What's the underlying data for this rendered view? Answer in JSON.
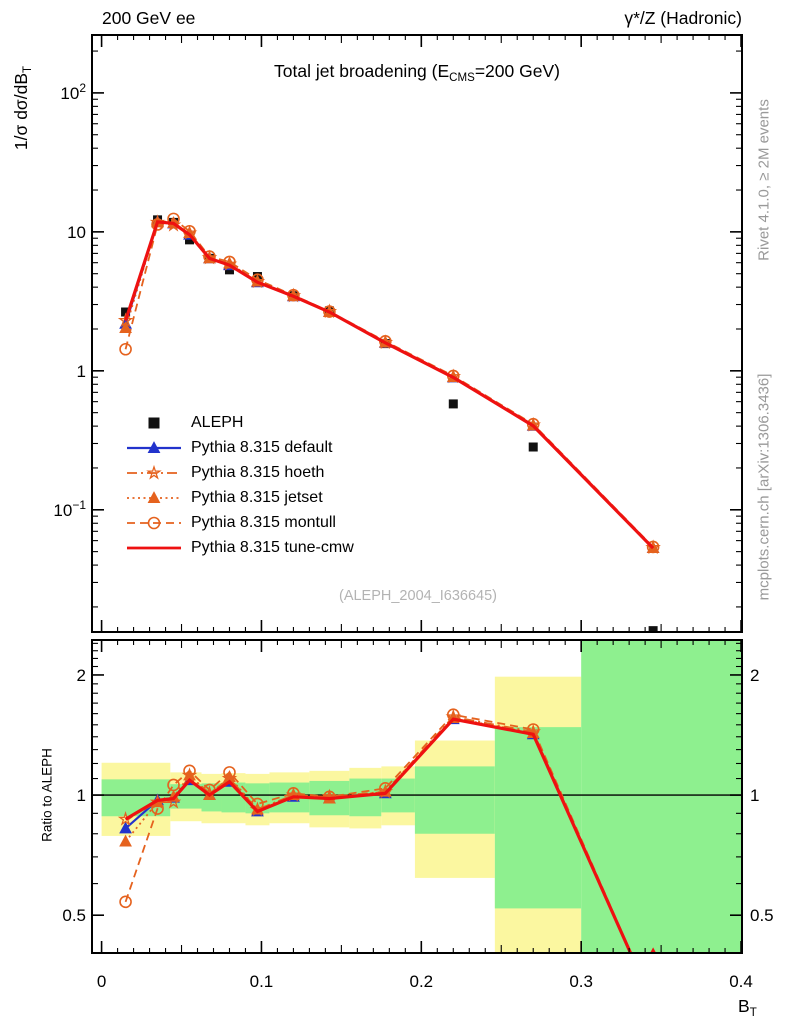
{
  "header": {
    "left": "200 GeV ee",
    "right": "γ*/Z (Hadronic)"
  },
  "main_panel": {
    "title": {
      "pre": "Total jet broadening (E",
      "sub": "CMS",
      "post": "=200 GeV)"
    },
    "ylabel": {
      "pre": "1/σ  dσ/dB",
      "sub": "T"
    },
    "watermark": "(ALEPH_2004_I636645)",
    "yticks": [
      {
        "base": "10",
        "exp": "2",
        "value": 100
      },
      {
        "base": "10",
        "exp": "",
        "value": 10
      },
      {
        "base": "1",
        "exp": "",
        "value": 1
      },
      {
        "base": "10",
        "exp": "−1",
        "value": 0.1
      }
    ]
  },
  "ratio_panel": {
    "ylabel": "Ratio to ALEPH",
    "yticks": [
      {
        "label": "2",
        "value": 2
      },
      {
        "label": "1",
        "value": 1
      },
      {
        "label": "0.5",
        "value": 0.5
      }
    ]
  },
  "xaxis": {
    "label": {
      "base": "B",
      "sub": "T"
    },
    "ticks": [
      {
        "label": "0",
        "value": 0.0
      },
      {
        "label": "0.1",
        "value": 0.1
      },
      {
        "label": "0.2",
        "value": 0.2
      },
      {
        "label": "0.3",
        "value": 0.3
      },
      {
        "label": "0.4",
        "value": 0.4
      }
    ]
  },
  "side_notes": {
    "top": "Rivet 4.1.0, ≥ 2M events",
    "bottom": "mcplots.cern.ch [arXiv:1306.3436]"
  },
  "colors": {
    "red": "#ee1111",
    "orange": "#e5621e",
    "blue": "#2233cc",
    "black": "#111111",
    "band_yellow": "#fbf7a0",
    "band_green": "#8ef08f",
    "gray_text": "#999999",
    "watermark": "#b3b3b3"
  },
  "chart_data": {
    "type": "line",
    "x_scale": "linear",
    "y_scale": "log",
    "xlim": [
      -0.006,
      0.4006
    ],
    "main_ylim": [
      0.0132,
      261
    ],
    "ratio_ylim": [
      0.402,
      2.447
    ],
    "ratio_reference": 1,
    "x": [
      0.015,
      0.035,
      0.045,
      0.055,
      0.0675,
      0.08,
      0.0975,
      0.12,
      0.1425,
      0.1775,
      0.22,
      0.27,
      0.345
    ],
    "data_series": {
      "name": "ALEPH",
      "color": "#111111",
      "marker": "square-filled",
      "values": [
        2.65,
        12.2,
        11.7,
        8.76,
        6.45,
        5.33,
        4.77,
        3.47,
        2.7,
        1.57,
        0.578,
        0.283,
        0.0135
      ]
    },
    "mc_series": [
      {
        "name": "Pythia 8.315 default",
        "color": "#2233cc",
        "line": "solid",
        "marker": "triangle-filled",
        "width": 2.2,
        "main_values": [
          2.18,
          11.8,
          11.5,
          9.55,
          6.45,
          5.76,
          4.34,
          3.44,
          2.65,
          1.59,
          0.897,
          0.402,
          0.053
        ],
        "ratio_values": [
          0.825,
          0.97,
          0.985,
          1.09,
          1.0,
          1.08,
          0.91,
          0.99,
          0.98,
          1.01,
          1.55,
          1.42,
          0.3
        ]
      },
      {
        "name": "Pythia 8.315 hoeth",
        "color": "#e5621e",
        "line": "dashdot",
        "marker": "star-open",
        "width": 1.8,
        "main_values": [
          2.3,
          11.7,
          11.2,
          9.81,
          6.51,
          5.86,
          4.39,
          3.47,
          2.67,
          1.6,
          0.908,
          0.407,
          0.0535
        ],
        "ratio_values": [
          0.87,
          0.96,
          0.96,
          1.12,
          1.01,
          1.1,
          0.92,
          1.0,
          0.99,
          1.02,
          1.57,
          1.44,
          0.3
        ]
      },
      {
        "name": "Pythia 8.315 jetset",
        "color": "#e5621e",
        "line": "dotted",
        "marker": "triangle-filled",
        "width": 1.8,
        "main_values": [
          2.03,
          11.7,
          11.6,
          9.81,
          6.45,
          5.92,
          4.39,
          3.47,
          2.65,
          1.6,
          0.902,
          0.405,
          0.053
        ],
        "ratio_values": [
          0.765,
          0.96,
          0.99,
          1.12,
          1.0,
          1.11,
          0.92,
          1.0,
          0.98,
          1.02,
          1.56,
          1.43,
          0.3
        ]
      },
      {
        "name": "Pythia 8.315 montull",
        "color": "#e5621e",
        "line": "dashed",
        "marker": "circle-open",
        "width": 1.8,
        "main_values": [
          1.43,
          11.3,
          12.4,
          10.1,
          6.64,
          6.08,
          4.53,
          3.5,
          2.67,
          1.63,
          0.919,
          0.413,
          0.054
        ],
        "ratio_values": [
          0.54,
          0.925,
          1.06,
          1.15,
          1.03,
          1.14,
          0.95,
          1.01,
          0.99,
          1.04,
          1.59,
          1.46,
          0.3
        ]
      },
      {
        "name": "Pythia 8.315 tune-cmw",
        "color": "#ee1111",
        "line": "solid",
        "marker": "none",
        "width": 3.2,
        "main_values": [
          2.3,
          11.8,
          11.5,
          9.55,
          6.45,
          5.76,
          4.34,
          3.44,
          2.65,
          1.59,
          0.897,
          0.402,
          0.053
        ],
        "ratio_values": [
          0.87,
          0.97,
          0.98,
          1.09,
          1.0,
          1.08,
          0.91,
          0.99,
          0.98,
          1.01,
          1.55,
          1.42,
          0.3
        ]
      }
    ],
    "ratio_bands": [
      {
        "x": [
          0.0,
          0.043
        ],
        "yellow": [
          0.79,
          1.205
        ],
        "green": [
          0.885,
          1.095
        ]
      },
      {
        "x": [
          0.043,
          0.0625
        ],
        "yellow": [
          0.86,
          1.14
        ],
        "green": [
          0.925,
          1.065
        ]
      },
      {
        "x": [
          0.0625,
          0.075
        ],
        "yellow": [
          0.85,
          1.13
        ],
        "green": [
          0.91,
          1.07
        ]
      },
      {
        "x": [
          0.075,
          0.09
        ],
        "yellow": [
          0.85,
          1.135
        ],
        "green": [
          0.905,
          1.075
        ]
      },
      {
        "x": [
          0.09,
          0.105
        ],
        "yellow": [
          0.84,
          1.13
        ],
        "green": [
          0.9,
          1.07
        ]
      },
      {
        "x": [
          0.105,
          0.13
        ],
        "yellow": [
          0.85,
          1.14
        ],
        "green": [
          0.905,
          1.075
        ]
      },
      {
        "x": [
          0.13,
          0.155
        ],
        "yellow": [
          0.83,
          1.15
        ],
        "green": [
          0.89,
          1.085
        ]
      },
      {
        "x": [
          0.155,
          0.175
        ],
        "yellow": [
          0.825,
          1.17
        ],
        "green": [
          0.885,
          1.1
        ]
      },
      {
        "x": [
          0.175,
          0.196
        ],
        "yellow": [
          0.84,
          1.18
        ],
        "green": [
          0.905,
          1.1
        ]
      },
      {
        "x": [
          0.196,
          0.246
        ],
        "yellow": [
          0.62,
          1.37
        ],
        "green": [
          0.8,
          1.18
        ]
      },
      {
        "x": [
          0.246,
          0.3
        ],
        "yellow": [
          0.4,
          1.98
        ],
        "green": [
          0.52,
          1.48
        ]
      },
      {
        "x": [
          0.3,
          0.4
        ],
        "yellow": null,
        "green": [
          0.402,
          2.447
        ]
      }
    ],
    "clipped_marker": {
      "x": 0.345,
      "panel": "ratio",
      "color": "#ee1111"
    }
  }
}
